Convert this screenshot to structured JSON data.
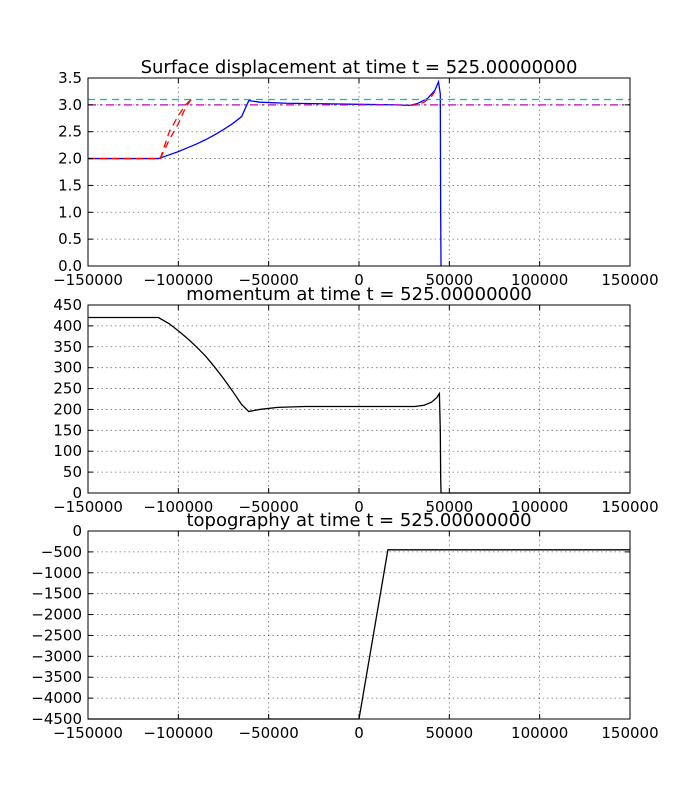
{
  "chart_data": [
    {
      "type": "line",
      "title": "Surface displacement at time t =   525.00000000",
      "xlim": [
        -150000,
        150000
      ],
      "ylim": [
        0,
        3.5
      ],
      "xticks": [
        -150000,
        -100000,
        -50000,
        0,
        50000,
        100000,
        150000
      ],
      "yticks": [
        0.0,
        0.5,
        1.0,
        1.5,
        2.0,
        2.5,
        3.0,
        3.5
      ],
      "ytick_labels": [
        "0.0",
        "0.5",
        "1.0",
        "1.5",
        "2.0",
        "2.5",
        "3.0",
        "3.5"
      ],
      "grid": true,
      "series": [
        {
          "color": "#0000ff",
          "style": "solid",
          "x": [
            -150000,
            -111000,
            -105000,
            -100000,
            -95000,
            -90000,
            -85000,
            -80000,
            -75000,
            -70000,
            -65000,
            -61000,
            -55000,
            -40000,
            -20000,
            0,
            20000,
            28000,
            32000,
            38000,
            42000,
            44000,
            45000,
            45200,
            45400
          ],
          "y": [
            2.0,
            2.0,
            2.07,
            2.13,
            2.2,
            2.27,
            2.35,
            2.44,
            2.54,
            2.65,
            2.78,
            3.08,
            3.05,
            3.03,
            3.02,
            3.01,
            3.0,
            2.99,
            3.02,
            3.12,
            3.27,
            3.43,
            3.2,
            1.0,
            0.0
          ]
        },
        {
          "color": "#ff0000",
          "style": "dashed",
          "x": [
            -150000,
            -140000,
            -130000,
            -120000,
            -110000,
            -105000,
            -100000,
            -96000,
            -93000
          ],
          "y": [
            2.0,
            2.0,
            2.0,
            2.0,
            2.0,
            2.5,
            2.8,
            3.0,
            3.1
          ]
        },
        {
          "color": "#00bfbf",
          "style": "dashed",
          "x": [
            -150000,
            150000
          ],
          "y": [
            3.1,
            3.1
          ]
        },
        {
          "color": "#bf00bf",
          "style": "dashdot",
          "x": [
            -150000,
            150000
          ],
          "y": [
            3.0,
            3.0
          ]
        },
        {
          "color": "#ff0000",
          "style": "dashed",
          "x": [
            -110000,
            -105000,
            -100000,
            -96000,
            -93000
          ],
          "y": [
            2.0,
            2.35,
            2.65,
            2.95,
            3.1
          ]
        },
        {
          "color": "#ff0000",
          "style": "dashed",
          "x": [
            28000,
            32000,
            36000,
            40000,
            42000
          ],
          "y": [
            2.99,
            3.0,
            3.05,
            3.15,
            3.25
          ]
        }
      ]
    },
    {
      "type": "line",
      "title": "momentum at time t =   525.00000000",
      "xlim": [
        -150000,
        150000
      ],
      "ylim": [
        0,
        450
      ],
      "xticks": [
        -150000,
        -100000,
        -50000,
        0,
        50000,
        100000,
        150000
      ],
      "yticks": [
        0,
        50,
        100,
        150,
        200,
        250,
        300,
        350,
        400,
        450
      ],
      "ytick_labels": [
        "0",
        "50",
        "100",
        "150",
        "200",
        "250",
        "300",
        "350",
        "400",
        "450"
      ],
      "grid": true,
      "series": [
        {
          "color": "#000000",
          "style": "solid",
          "x": [
            -150000,
            -111000,
            -105000,
            -100000,
            -95000,
            -90000,
            -85000,
            -80000,
            -75000,
            -70000,
            -65000,
            -61000,
            -55000,
            -45000,
            -30000,
            -10000,
            10000,
            25000,
            31000,
            36000,
            40000,
            43000,
            44500,
            45000,
            45200,
            45400,
            150000
          ],
          "y": [
            420,
            420,
            405,
            388,
            370,
            350,
            328,
            302,
            274,
            244,
            212,
            195,
            200,
            205,
            207,
            207,
            207,
            207,
            207,
            210,
            217,
            228,
            238,
            150,
            40,
            0,
            0
          ]
        }
      ]
    },
    {
      "type": "line",
      "title": "topography at time t =   525.00000000",
      "xlim": [
        -150000,
        150000
      ],
      "ylim": [
        -4500,
        0
      ],
      "xticks": [
        -150000,
        -100000,
        -50000,
        0,
        50000,
        100000,
        150000
      ],
      "yticks": [
        -4500,
        -4000,
        -3500,
        -3000,
        -2500,
        -2000,
        -1500,
        -1000,
        -500,
        0
      ],
      "ytick_labels": [
        "−4500",
        "−4000",
        "−3500",
        "−3000",
        "−2500",
        "−2000",
        "−1500",
        "−1000",
        "−500",
        "0"
      ],
      "grid": true,
      "series": [
        {
          "color": "#000000",
          "style": "solid",
          "x": [
            -150000,
            0,
            16000,
            150000
          ],
          "y": [
            -4500,
            -4500,
            -450,
            -450
          ]
        }
      ]
    }
  ],
  "xtick_labels": [
    "−150000",
    "−100000",
    "−50000",
    "0",
    "50000",
    "100000",
    "150000"
  ]
}
